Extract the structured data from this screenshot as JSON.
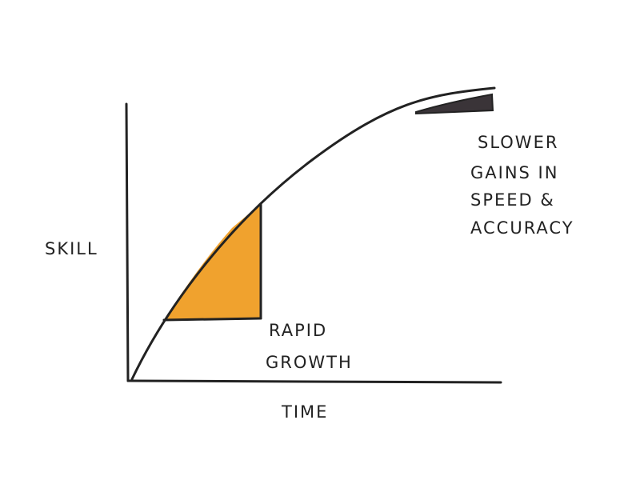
{
  "axes": {
    "y_label": "SKILL",
    "x_label": "TIME"
  },
  "annotations": {
    "rapid_growth": [
      "RAPID",
      "GROWTH"
    ],
    "slower_gains": [
      "SLOWER",
      "GAINS IN",
      "SPEED &",
      "ACCURACY"
    ]
  },
  "colors": {
    "ink": "#222222",
    "highlight": "#F0A22E",
    "dark_band": "#3a3438"
  }
}
